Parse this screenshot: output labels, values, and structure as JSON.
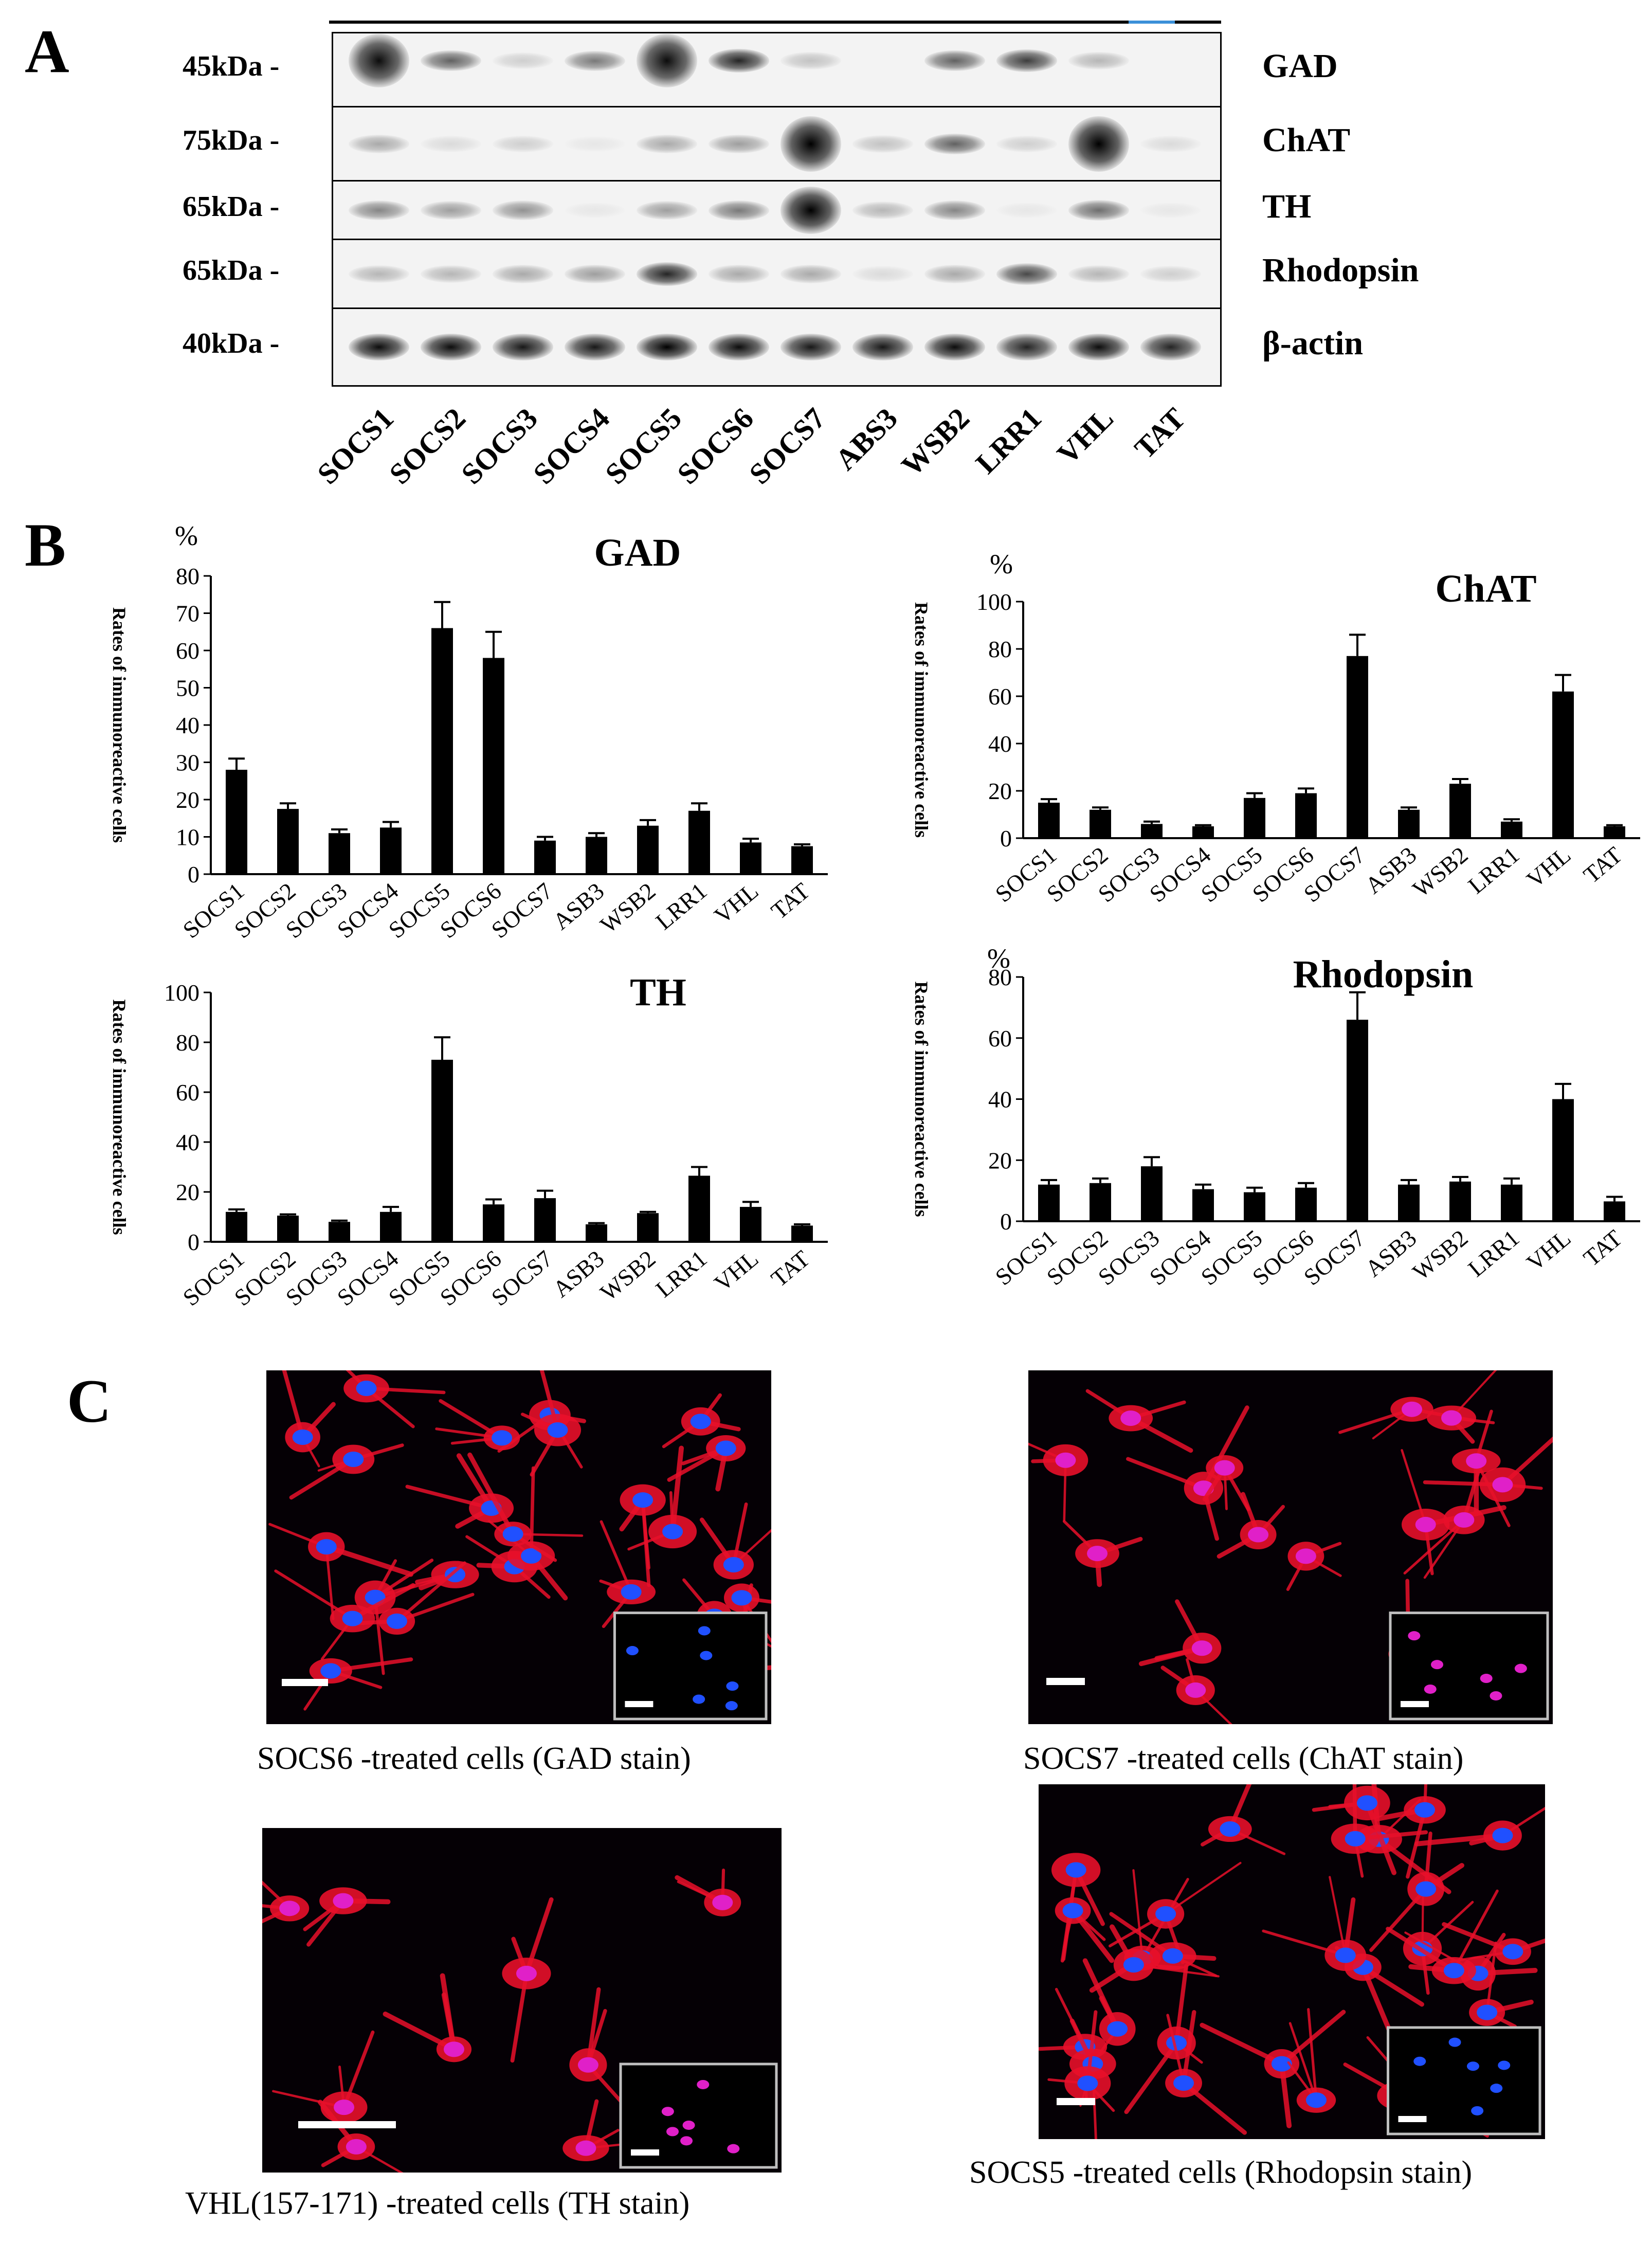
{
  "panels": {
    "a": "A",
    "b": "B",
    "c": "C"
  },
  "western_blot": {
    "rows": [
      {
        "marker": "45kDa -",
        "protein": "GAD"
      },
      {
        "marker": "75kDa -",
        "protein": "ChAT"
      },
      {
        "marker": "65kDa -",
        "protein": "TH"
      },
      {
        "marker": "65kDa -",
        "protein": "Rhodopsin"
      },
      {
        "marker": "40kDa -",
        "protein": "β-actin"
      }
    ],
    "lanes": [
      "SOCS1",
      "SOCS2",
      "SOCS3",
      "SOCS4",
      "SOCS5",
      "SOCS6",
      "SOCS7",
      "ABS3",
      "WSB2",
      "LRR1",
      "VHL",
      "TAT"
    ]
  },
  "chart_data": [
    {
      "type": "bar",
      "title": "GAD",
      "unit": "%",
      "ylabel": "Rates of immunoreactive cells",
      "categories": [
        "SOCS1",
        "SOCS2",
        "SOCS3",
        "SOCS4",
        "SOCS5",
        "SOCS6",
        "SOCS7",
        "ASB3",
        "WSB2",
        "LRR1",
        "VHL",
        "TAT"
      ],
      "values": [
        28,
        17.5,
        11,
        12.5,
        66,
        58,
        9,
        10,
        13,
        17,
        8.5,
        7.5
      ],
      "errors": [
        3,
        1.5,
        1,
        1.5,
        7,
        7,
        1,
        1,
        1.5,
        2,
        1,
        0.5
      ],
      "ylim": [
        0,
        80
      ],
      "yticks": [
        0,
        10,
        20,
        30,
        40,
        50,
        60,
        70,
        80
      ]
    },
    {
      "type": "bar",
      "title": "ChAT",
      "unit": "%",
      "ylabel": "Rates of immunoreactive cells",
      "categories": [
        "SOCS1",
        "SOCS2",
        "SOCS3",
        "SOCS4",
        "SOCS5",
        "SOCS6",
        "SOCS7",
        "ASB3",
        "WSB2",
        "LRR1",
        "VHL",
        "TAT"
      ],
      "values": [
        15,
        12,
        6,
        5,
        17,
        19,
        77,
        12,
        23,
        7,
        62,
        5
      ],
      "errors": [
        1.5,
        1,
        1,
        0.5,
        2,
        2,
        9,
        1,
        2,
        1,
        7,
        0.5
      ],
      "ylim": [
        0,
        100
      ],
      "yticks": [
        0,
        20,
        40,
        60,
        80,
        100
      ]
    },
    {
      "type": "bar",
      "title": "TH",
      "unit": "",
      "ylabel": "Rates of immunoreactive cells",
      "categories": [
        "SOCS1",
        "SOCS2",
        "SOCS3",
        "SOCS4",
        "SOCS5",
        "SOCS6",
        "SOCS7",
        "ASB3",
        "WSB2",
        "LRR1",
        "VHL",
        "TAT"
      ],
      "values": [
        12,
        10.5,
        8,
        12,
        73,
        15,
        17.5,
        7,
        11.5,
        26.5,
        14,
        6.5
      ],
      "errors": [
        1,
        0.5,
        0.5,
        2,
        9,
        2,
        3,
        0.5,
        0.5,
        3.5,
        2,
        0.5
      ],
      "ylim": [
        0,
        100
      ],
      "yticks": [
        0,
        20,
        40,
        60,
        80,
        100
      ]
    },
    {
      "type": "bar",
      "title": "Rhodopsin",
      "unit": "%",
      "ylabel": "Rates of immunoreactive cells",
      "categories": [
        "SOCS1",
        "SOCS2",
        "SOCS3",
        "SOCS4",
        "SOCS5",
        "SOCS6",
        "SOCS7",
        "ASB3",
        "WSB2",
        "LRR1",
        "VHL",
        "TAT"
      ],
      "values": [
        12,
        12.5,
        18,
        10.5,
        9.5,
        11,
        66,
        12,
        13,
        12,
        40,
        6.5
      ],
      "errors": [
        1.5,
        1.5,
        3,
        1.5,
        1.5,
        1.5,
        9,
        1.5,
        1.5,
        2,
        5,
        1.5
      ],
      "ylim": [
        0,
        80
      ],
      "yticks": [
        0,
        20,
        40,
        60,
        80
      ]
    }
  ],
  "micrographs": [
    {
      "caption": "SOCS6 -treated  cells (GAD stain)"
    },
    {
      "caption": "SOCS7 -treated cells (ChAT stain)"
    },
    {
      "caption": "VHL(157-171) -treated cells (TH stain)"
    },
    {
      "caption": "SOCS5 -treated cells (Rhodopsin stain)"
    }
  ],
  "colors": {
    "bar": "#000000",
    "stain": "#e8102a",
    "nucleus": "#2050ff",
    "merged": "#e020c8"
  }
}
